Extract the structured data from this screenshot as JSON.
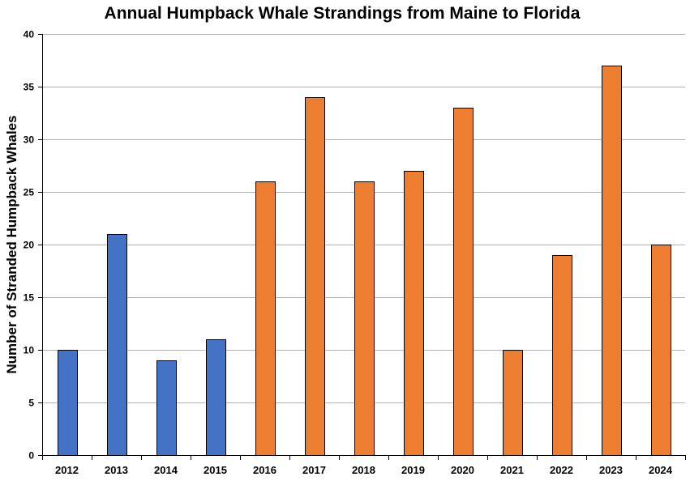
{
  "chart_data": {
    "type": "bar",
    "title": "Annual Humpback Whale Strandings from Maine to Florida",
    "xlabel": "",
    "ylabel": "Number of Stranded Humpback Whales",
    "ylim": [
      0,
      40
    ],
    "y_ticks": [
      0,
      5,
      10,
      15,
      20,
      25,
      30,
      35,
      40
    ],
    "grid": true,
    "legend": "none",
    "categories": [
      "2012",
      "2013",
      "2014",
      "2015",
      "2016",
      "2017",
      "2018",
      "2019",
      "2020",
      "2021",
      "2022",
      "2023",
      "2024"
    ],
    "values": [
      10,
      21,
      9,
      11,
      26,
      34,
      26,
      27,
      33,
      10,
      19,
      37,
      20
    ],
    "colors": {
      "early": "#4472C4",
      "later": "#ED7D31",
      "outline": "#000000",
      "gridline": "#B3B3B3",
      "axis": "#000000"
    },
    "bar_color_group": [
      "early",
      "early",
      "early",
      "early",
      "later",
      "later",
      "later",
      "later",
      "later",
      "later",
      "later",
      "later",
      "later"
    ]
  }
}
